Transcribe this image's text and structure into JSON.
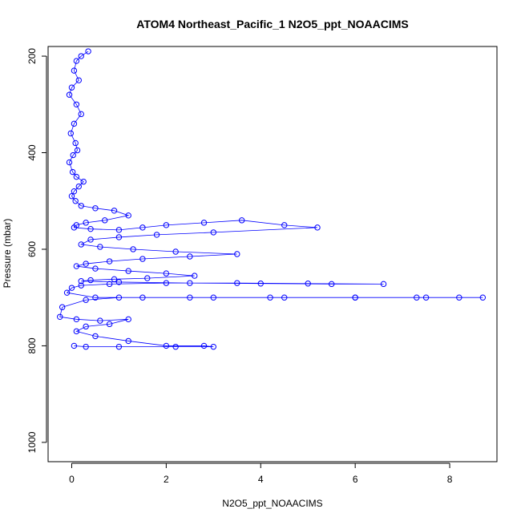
{
  "chart_data": {
    "type": "scatter",
    "title": "ATOM4 Northeast_Pacific_1 N2O5_ppt_NOAACIMS",
    "xlabel": "N2O5_ppt_NOAACIMS",
    "ylabel": "Pressure (mbar)",
    "xlim": [
      -0.5,
      9.0
    ],
    "ylim": [
      1040,
      180
    ],
    "y_axis_inverted": true,
    "xticks": [
      0,
      2,
      4,
      6,
      8
    ],
    "xtick_labels": [
      "0",
      "2",
      "4",
      "6",
      "8"
    ],
    "yticks": [
      200,
      400,
      600,
      800,
      1000
    ],
    "ytick_labels": [
      "200",
      "400",
      "600",
      "800",
      "1000"
    ],
    "grid": false,
    "legend": "none",
    "marker": "open-circle",
    "connect_points": true,
    "colors": {
      "series": "#0000ff",
      "line": "#0000ff",
      "axis": "#000000",
      "background": "#ffffff"
    },
    "series": [
      {
        "x": [
          0.35,
          0.2,
          0.1,
          0.05,
          0.15,
          0.0,
          -0.05,
          0.1,
          0.2,
          0.05,
          -0.02,
          0.08,
          0.12,
          0.03,
          -0.05,
          0.02,
          0.1,
          0.25,
          0.15,
          0.05,
          0.0,
          0.08,
          0.2,
          0.5,
          0.9,
          1.2,
          0.7,
          0.3,
          0.1,
          0.05,
          0.4,
          1.0,
          1.5,
          2.0,
          2.8,
          3.6,
          4.5,
          5.2,
          3.0,
          1.8,
          1.0,
          0.4,
          0.2,
          0.6,
          1.3,
          2.2,
          3.5,
          2.5,
          1.5,
          0.8,
          0.3,
          0.1,
          0.5,
          1.2,
          2.0,
          2.6,
          1.6,
          0.9,
          0.4,
          0.2,
          1.0,
          2.5,
          4.0,
          5.5,
          6.6,
          5.0,
          3.5,
          2.0,
          0.8,
          0.2,
          0.0,
          -0.1,
          0.5,
          1.5,
          3.0,
          4.5,
          6.0,
          7.3,
          8.2,
          8.7,
          7.5,
          6.0,
          4.2,
          2.5,
          1.0,
          0.3,
          -0.2,
          -0.25,
          0.1,
          0.6,
          1.2,
          0.8,
          0.3,
          0.1,
          0.5,
          1.2,
          2.0,
          2.8,
          3.0,
          2.2,
          1.0,
          0.3,
          0.05
        ],
        "y": [
          190,
          200,
          210,
          230,
          250,
          265,
          280,
          300,
          320,
          340,
          360,
          380,
          395,
          405,
          420,
          440,
          450,
          460,
          470,
          480,
          490,
          500,
          510,
          515,
          520,
          530,
          540,
          545,
          550,
          555,
          558,
          560,
          555,
          550,
          545,
          540,
          550,
          555,
          565,
          570,
          575,
          580,
          590,
          595,
          600,
          605,
          610,
          615,
          620,
          625,
          630,
          635,
          640,
          645,
          650,
          655,
          660,
          662,
          664,
          666,
          668,
          670,
          671,
          672,
          672,
          671,
          670,
          670,
          672,
          675,
          680,
          690,
          700,
          700,
          700,
          700,
          700,
          700,
          700,
          700,
          700,
          700,
          700,
          700,
          700,
          705,
          720,
          740,
          745,
          748,
          745,
          755,
          760,
          770,
          780,
          790,
          800,
          800,
          802,
          802,
          802,
          802,
          800
        ]
      }
    ]
  }
}
